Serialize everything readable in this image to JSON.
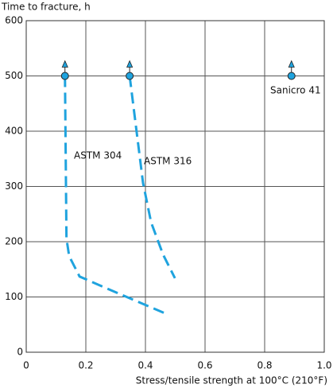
{
  "chart_data": {
    "type": "line",
    "y_label": "Time to fracture, h",
    "x_label": "Stress/tensile strength at 100°C (210°F)",
    "xlim": [
      0,
      1
    ],
    "ylim": [
      0,
      600
    ],
    "xticks": [
      0,
      0.2,
      0.4,
      0.6,
      0.8,
      {
        "value": 1,
        "label": "1.0"
      }
    ],
    "yticks": [
      0,
      100,
      200,
      300,
      400,
      500,
      600
    ],
    "grid": true,
    "series": [
      {
        "name": "ASTM 304",
        "color": "#1fa3de",
        "x": [
          0.13,
          0.135,
          0.144,
          0.179,
          0.285,
          0.472
        ],
        "values": [
          500,
          206,
          174,
          137,
          112,
          69
        ]
      },
      {
        "name": "ASTM 316",
        "color": "#1fa3de",
        "x": [
          0.347,
          0.392,
          0.419,
          0.459,
          0.499
        ],
        "values": [
          500,
          306,
          235,
          177,
          134
        ]
      },
      {
        "name": "Sanicro 41",
        "color": "#1fa3de",
        "x": [
          0.89
        ],
        "values": [
          500
        ]
      }
    ]
  }
}
